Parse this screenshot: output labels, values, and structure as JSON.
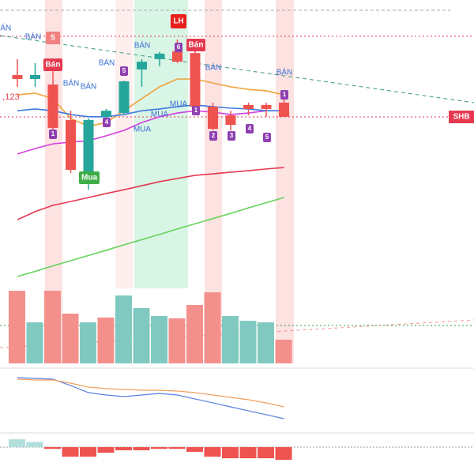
{
  "chart_data": {
    "type": "candlestick",
    "categories": [
      null,
      null,
      null,
      null,
      null,
      null,
      null,
      null,
      null,
      null,
      null,
      null,
      null,
      null,
      null,
      null
    ],
    "ylim": [
      0,
      100
    ],
    "up_color": "#26a69a",
    "down_color": "#ef5350",
    "candles": {
      "open": [
        74.0,
        72.6,
        70.7,
        58.4,
        36.4,
        59.5,
        60.8,
        75.9,
        79.5,
        82.2,
        81.6,
        63.0,
        60.0,
        63.6,
        63.6,
        64.4
      ],
      "high": [
        79.5,
        78.1,
        75.3,
        61.6,
        58.9,
        62.2,
        72.0,
        79.5,
        82.0,
        86.3,
        82.2,
        64.4,
        61.6,
        64.4,
        64.4,
        66.0
      ],
      "low": [
        69.9,
        69.9,
        54.8,
        40.0,
        34.2,
        57.5,
        60.3,
        69.9,
        77.0,
        78.1,
        61.6,
        54.8,
        54.8,
        60.0,
        59.5,
        59.5
      ],
      "close": [
        72.6,
        74.0,
        55.6,
        41.1,
        58.4,
        61.6,
        71.8,
        78.6,
        81.4,
        78.6,
        63.0,
        55.3,
        56.7,
        62.2,
        62.2,
        59.5
      ]
    },
    "moving_averages": [
      {
        "color": "#e53950",
        "values": [
          23.8,
          26.6,
          28.8,
          30.1,
          31.5,
          32.9,
          34.2,
          35.6,
          37.0,
          38.1,
          39.2,
          39.7,
          40.3,
          40.8,
          41.4,
          41.9
        ]
      },
      {
        "color": "#66d35a",
        "values": [
          4.1,
          5.9,
          7.8,
          9.6,
          11.4,
          13.2,
          15.1,
          16.9,
          18.7,
          20.6,
          22.4,
          24.2,
          26.0,
          27.9,
          29.7,
          31.5
        ]
      },
      {
        "color": "#d63ee0",
        "values": [
          46.6,
          48.5,
          50.1,
          50.7,
          51.2,
          52.9,
          54.8,
          57.5,
          59.5,
          60.8,
          61.6,
          61.1,
          60.3,
          60.8,
          61.6,
          61.6
        ]
      },
      {
        "color": "#f0a23c",
        "values": [
          67.1,
          67.7,
          65.8,
          58.9,
          56.2,
          57.5,
          61.6,
          65.8,
          69.9,
          72.6,
          72.6,
          71.2,
          69.9,
          69.0,
          68.5,
          67.1
        ]
      },
      {
        "color": "#3d7be0",
        "values": [
          61.6,
          62.2,
          61.6,
          60.3,
          59.5,
          59.5,
          60.3,
          61.6,
          62.2,
          63.0,
          63.6,
          63.0,
          62.5,
          62.2,
          61.6,
          61.6
        ]
      }
    ],
    "volume": {
      "ylim": [
        0,
        100
      ],
      "values": [
        96.8,
        54.7,
        96.8,
        66.3,
        54.7,
        61.1,
        90.5,
        73.7,
        63.2,
        60.0,
        77.9,
        94.7,
        63.2,
        56.8,
        54.7,
        31.6
      ],
      "colors": [
        "#f4908c",
        "#80c9c0",
        "#f4908c",
        "#f4908c",
        "#80c9c0",
        "#f4908c",
        "#80c9c0",
        "#80c9c0",
        "#80c9c0",
        "#f4908c",
        "#f4908c",
        "#f4908c",
        "#80c9c0",
        "#80c9c0",
        "#80c9c0",
        "#f4908c"
      ]
    },
    "oscillator": {
      "ylim": [
        0,
        100
      ],
      "series": [
        {
          "color": "#5b7fe0",
          "values": [
            89.3,
            88,
            86.7,
            76,
            64,
            60,
            57.3,
            60,
            62.7,
            60,
            53.3,
            46.7,
            40,
            33.3,
            26.7,
            20
          ]
        },
        {
          "color": "#f0a060",
          "values": [
            86.7,
            85.3,
            85.3,
            80,
            73.3,
            70.7,
            69.3,
            68,
            68,
            66.7,
            64,
            60,
            56,
            52,
            46.7,
            40
          ]
        }
      ]
    },
    "histogram": {
      "ylim": [
        -10,
        10
      ],
      "pos_color": "#b2dfdb",
      "neg_color": "#ef5350",
      "values": [
        4.5,
        3,
        -1,
        -5.5,
        -5.5,
        -3.2,
        -1.8,
        -1.8,
        -1,
        -1,
        -2.7,
        -5.5,
        -6.4,
        -6.4,
        -6.4,
        -7.3
      ]
    },
    "annotations": [
      "BÁN",
      "BÁN",
      "BÁN",
      "BÁN",
      "BÁN",
      "BÁN",
      "BÁN",
      "BÁN",
      "Bán",
      "Bán",
      "LH",
      "MUA",
      "MUA",
      "MUA",
      "Mua",
      "5",
      ",123",
      "1",
      "1",
      "1",
      "2",
      "3",
      "4",
      "4",
      "5",
      "5",
      "6"
    ],
    "symbol": "SHB"
  }
}
